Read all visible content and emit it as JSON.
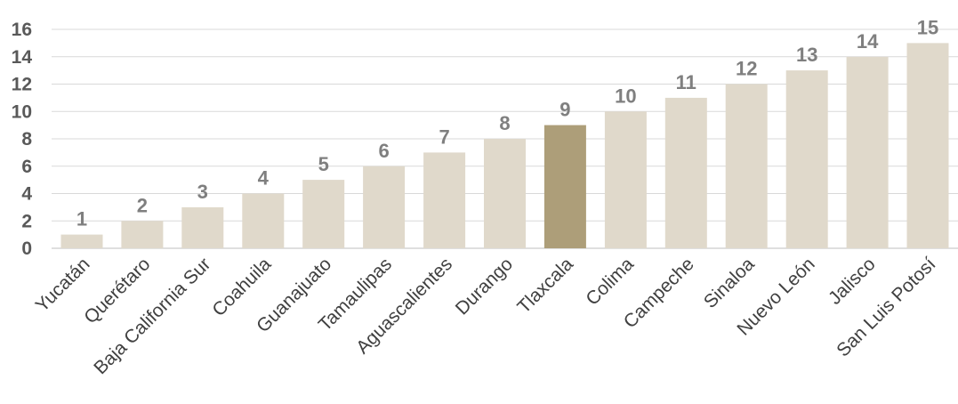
{
  "chart_data": {
    "type": "bar",
    "categories": [
      "Yucatán",
      "Querétaro",
      "Baja California Sur",
      "Coahuila",
      "Guanajuato",
      "Tamaulipas",
      "Aguascalientes",
      "Durango",
      "Tlaxcala",
      "Colima",
      "Campeche",
      "Sinaloa",
      "Nuevo León",
      "Jalisco",
      "San Luis Potosí"
    ],
    "values": [
      1,
      2,
      3,
      4,
      5,
      6,
      7,
      8,
      9,
      10,
      11,
      12,
      13,
      14,
      15
    ],
    "ylim": [
      0,
      16
    ],
    "yticks": [
      0,
      2,
      4,
      6,
      8,
      10,
      12,
      14,
      16
    ],
    "grid": true,
    "legend": "none",
    "highlight_category": "Tlaxcala",
    "colors": {
      "bar": "#e0d9cb",
      "highlight": "#ad9e79",
      "grid": "#d9d9d9",
      "tick_text": "#595959",
      "data_label": "#7f7f7f",
      "category_text": "#404040"
    }
  }
}
